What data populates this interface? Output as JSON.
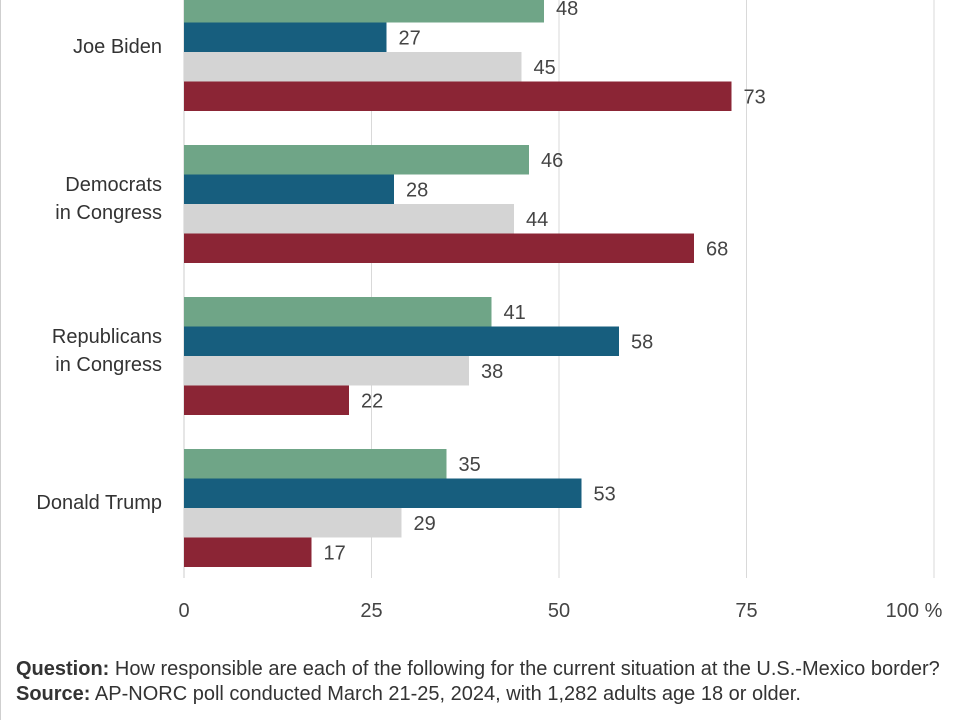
{
  "chart_data": {
    "type": "bar",
    "orientation": "horizontal",
    "categories": [
      [
        "Joe Biden"
      ],
      [
        "Democrats",
        "in Congress"
      ],
      [
        "Republicans",
        "in Congress"
      ],
      [
        "Donald Trump"
      ]
    ],
    "series": [
      {
        "color": "#6fa587",
        "values": [
          48,
          46,
          41,
          35
        ]
      },
      {
        "color": "#175e7e",
        "values": [
          27,
          28,
          58,
          53
        ]
      },
      {
        "color": "#d4d4d4",
        "values": [
          45,
          44,
          38,
          29
        ]
      },
      {
        "color": "#8b2535",
        "values": [
          73,
          68,
          22,
          17
        ]
      }
    ],
    "xlim": [
      0,
      100
    ],
    "x_ticks": [
      "0",
      "25",
      "50",
      "75",
      "100 %"
    ],
    "x_tick_values": [
      0,
      25,
      50,
      75,
      100
    ],
    "grid": true,
    "legend": "none visible"
  },
  "footnote": {
    "question_label": "Question:",
    "question_text": "How responsible are each of the following for the current situation at the U.S.-Mexico border?",
    "source_label": "Source:",
    "source_text": "AP-NORC poll conducted March 21-25, 2024, with 1,282 adults age 18 or older."
  }
}
